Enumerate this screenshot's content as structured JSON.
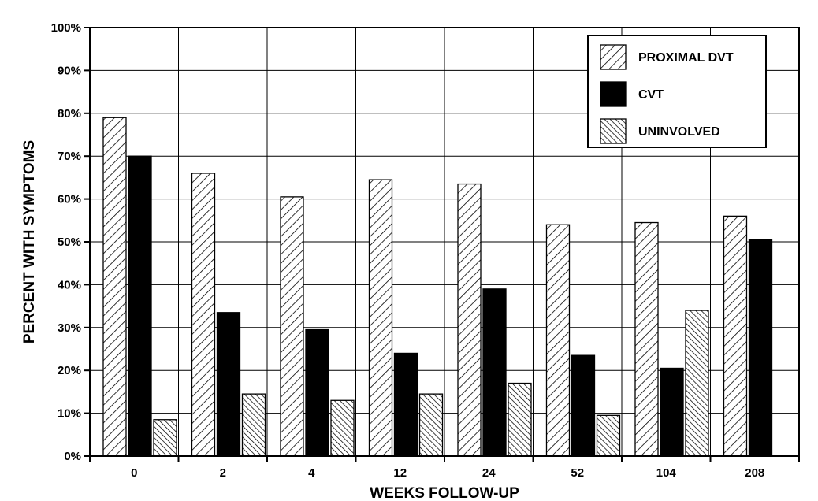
{
  "chart_data": {
    "type": "bar",
    "title": "",
    "xlabel": "WEEKS FOLLOW-UP",
    "ylabel": "PERCENT WITH SYMPTOMS",
    "categories": [
      "0",
      "2",
      "4",
      "12",
      "24",
      "52",
      "104",
      "208"
    ],
    "ylim": [
      0,
      100
    ],
    "yticks": [
      0,
      10,
      20,
      30,
      40,
      50,
      60,
      70,
      80,
      90,
      100
    ],
    "ytick_labels": [
      "0%",
      "10%",
      "20%",
      "30%",
      "40%",
      "50%",
      "60%",
      "70%",
      "80%",
      "90%",
      "100%"
    ],
    "grid": true,
    "legend_position": "top-right",
    "series": [
      {
        "name": "PROXIMAL DVT",
        "pattern": "diagonal-hatch-forward",
        "values": [
          79,
          66,
          60.5,
          64.5,
          63.5,
          54,
          54.5,
          56
        ]
      },
      {
        "name": "CVT",
        "pattern": "solid-black",
        "values": [
          70,
          33.5,
          29.5,
          24,
          39,
          23.5,
          20.5,
          50.5
        ]
      },
      {
        "name": "UNINVOLVED",
        "pattern": "diagonal-hatch-backward",
        "values": [
          8.5,
          14.5,
          13,
          14.5,
          17,
          9.5,
          34,
          null
        ]
      }
    ]
  }
}
